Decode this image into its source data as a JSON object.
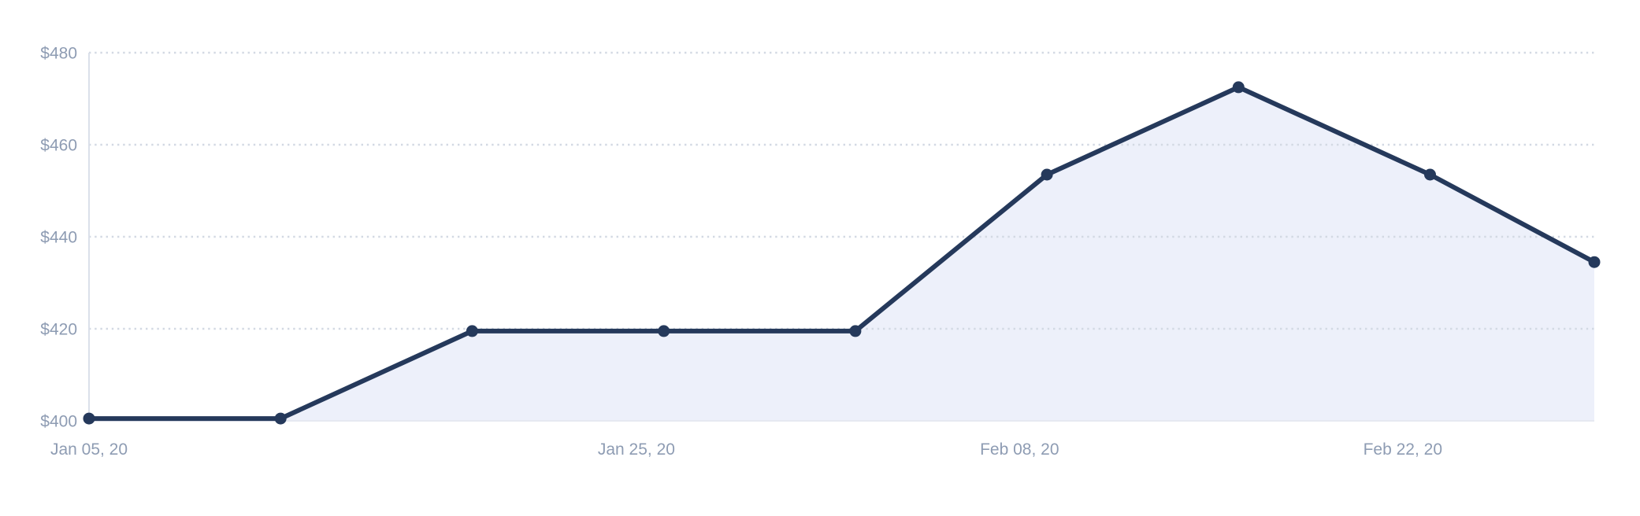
{
  "chart_data": {
    "type": "area",
    "title": "",
    "xlabel": "",
    "ylabel": "",
    "currency_prefix": "$",
    "points": [
      {
        "date": "Jan 05, 20",
        "day": 0,
        "value": 400.5
      },
      {
        "date": "Jan 12, 20",
        "day": 7,
        "value": 400.5
      },
      {
        "date": "Jan 19, 20",
        "day": 14,
        "value": 419.5
      },
      {
        "date": "Jan 26, 20",
        "day": 21,
        "value": 419.5
      },
      {
        "date": "Feb 02, 20",
        "day": 28,
        "value": 419.5
      },
      {
        "date": "Feb 09, 20",
        "day": 35,
        "value": 453.5
      },
      {
        "date": "Feb 16, 20",
        "day": 42,
        "value": 472.5
      },
      {
        "date": "Feb 23, 20",
        "day": 49,
        "value": 453.5
      },
      {
        "date": "Feb 29, 20",
        "day": 55,
        "value": 434.5
      }
    ],
    "x_ticks": [
      {
        "label": "Jan 05, 20",
        "day": 0
      },
      {
        "label": "Jan 25, 20",
        "day": 20
      },
      {
        "label": "Feb 08, 20",
        "day": 34
      },
      {
        "label": "Feb 22, 20",
        "day": 48
      }
    ],
    "y_ticks": [
      {
        "label": "$400",
        "value": 400
      },
      {
        "label": "$420",
        "value": 420
      },
      {
        "label": "$440",
        "value": 440
      },
      {
        "label": "$460",
        "value": 460
      },
      {
        "label": "$480",
        "value": 480
      }
    ],
    "ylim": [
      400,
      480
    ],
    "xlim_days": [
      0,
      55
    ],
    "grid": "horizontal-dotted",
    "legend": "none",
    "marker": "filled-circle"
  },
  "colors": {
    "line": "#25395B",
    "marker": "#25395B",
    "area_fill": "#EDF0FA",
    "grid_dots": "#D3D9E3",
    "axis_line": "#DBE0EA",
    "baseline": "#E6E9F1",
    "tick_text": "#8E9CB3",
    "background": "#FFFFFF"
  }
}
